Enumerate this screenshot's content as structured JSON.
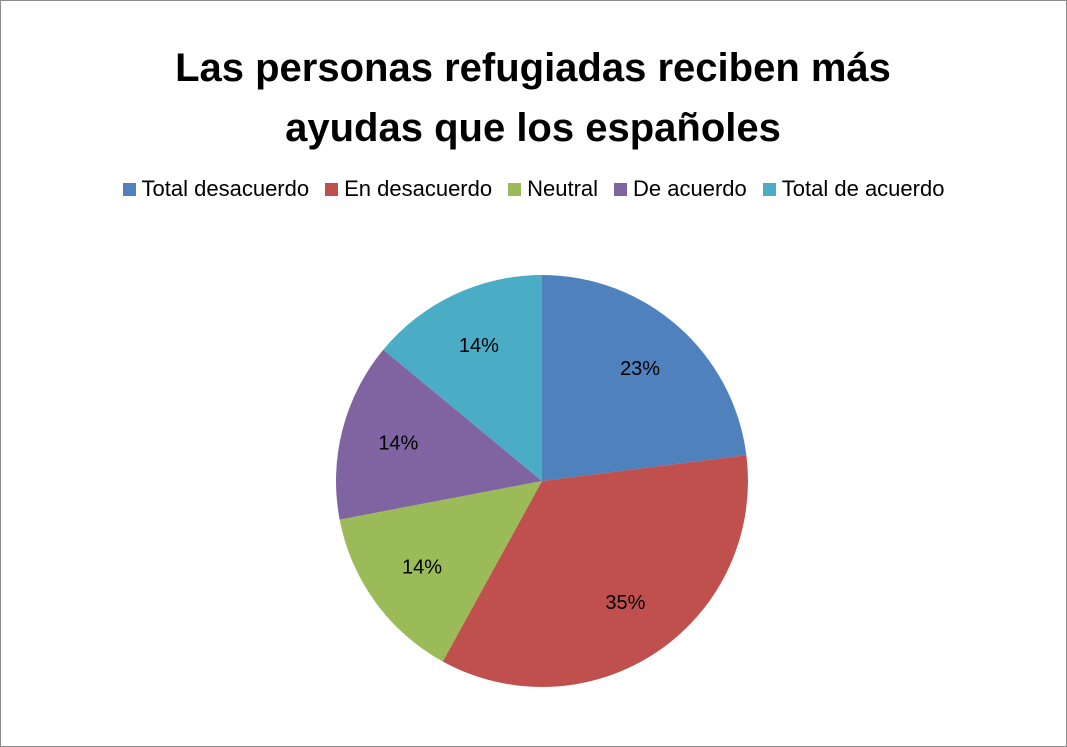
{
  "chart_data": {
    "type": "pie",
    "title": "Las personas refugiadas reciben más ayudas que los españoles",
    "categories": [
      "Total desacuerdo",
      "En desacuerdo",
      "Neutral",
      "De acuerdo",
      "Total de acuerdo"
    ],
    "values": [
      23,
      35,
      14,
      14,
      14
    ],
    "value_labels": [
      "23%",
      "35%",
      "14%",
      "14%",
      "14%"
    ],
    "colors": [
      "#4f81bd",
      "#c0504d",
      "#9bbb59",
      "#8064a2",
      "#4bacc6"
    ],
    "legend": "top"
  }
}
